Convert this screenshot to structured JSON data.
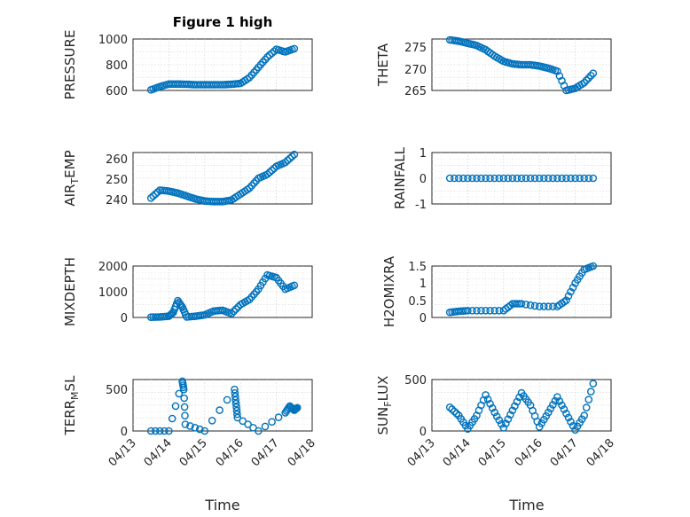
{
  "figure_title": "Figure 1 high",
  "xlabel": "Time",
  "x_ticks": [
    "04/13",
    "04/14",
    "04/15",
    "04/16",
    "04/17",
    "04/18"
  ],
  "marker_color": "#0072BD",
  "chart_data": [
    {
      "id": "pressure",
      "type": "scatter",
      "title": "Figure 1 high",
      "ylabel": "PRESSURE",
      "ylim": [
        600,
        1000
      ],
      "yticks": [
        "600",
        "800",
        "1000"
      ],
      "xlim": [
        "04/13",
        "04/18"
      ],
      "grid": true,
      "x": [
        "04/13 12:00",
        "04/13 18:00",
        "04/14 00:00",
        "04/14 06:00",
        "04/14 12:00",
        "04/14 18:00",
        "04/15 00:00",
        "04/15 06:00",
        "04/15 12:00",
        "04/15 18:00",
        "04/16 00:00",
        "04/16 06:00",
        "04/16 12:00",
        "04/16 18:00",
        "04/17 00:00",
        "04/17 06:00",
        "04/17 12:00"
      ],
      "y": [
        605,
        630,
        650,
        650,
        648,
        645,
        645,
        645,
        645,
        648,
        655,
        700,
        780,
        860,
        920,
        900,
        925
      ]
    },
    {
      "id": "theta",
      "type": "scatter",
      "ylabel": "THETA",
      "ylim": [
        265,
        277
      ],
      "yticks": [
        "265",
        "270",
        "275"
      ],
      "xlim": [
        "04/13",
        "04/18"
      ],
      "grid": true,
      "x": [
        "04/13 12:00",
        "04/13 18:00",
        "04/14 00:00",
        "04/14 06:00",
        "04/14 12:00",
        "04/14 18:00",
        "04/15 00:00",
        "04/15 06:00",
        "04/15 12:00",
        "04/15 18:00",
        "04/16 00:00",
        "04/16 06:00",
        "04/16 12:00",
        "04/16 18:00",
        "04/17 00:00",
        "04/17 06:00",
        "04/17 12:00"
      ],
      "y": [
        276.8,
        276.5,
        276.0,
        275.5,
        274.5,
        273.0,
        271.8,
        271.2,
        271.0,
        271.0,
        270.7,
        270.2,
        269.5,
        265.0,
        265.5,
        266.8,
        269.0
      ]
    },
    {
      "id": "air_temp",
      "type": "scatter",
      "ylabel": "AIR_TEMP",
      "ylim": [
        238,
        264
      ],
      "yticks": [
        "240",
        "250",
        "260"
      ],
      "xlim": [
        "04/13",
        "04/18"
      ],
      "grid": true,
      "x": [
        "04/13 12:00",
        "04/13 18:00",
        "04/14 00:00",
        "04/14 06:00",
        "04/14 12:00",
        "04/14 18:00",
        "04/15 00:00",
        "04/15 06:00",
        "04/15 12:00",
        "04/15 18:00",
        "04/16 00:00",
        "04/16 06:00",
        "04/16 12:00",
        "04/16 18:00",
        "04/17 00:00",
        "04/17 06:00",
        "04/17 12:00"
      ],
      "y": [
        241,
        245,
        244.5,
        243.5,
        242,
        240.5,
        239.5,
        239.2,
        239.2,
        240,
        243,
        246,
        251,
        253,
        257,
        259,
        263
      ]
    },
    {
      "id": "rainfall",
      "type": "scatter",
      "ylabel": "RAINFALL",
      "ylim": [
        -1,
        1
      ],
      "yticks": [
        "-1",
        "0",
        "1"
      ],
      "xlim": [
        "04/13",
        "04/18"
      ],
      "grid": true,
      "x": [
        "04/13 12:00",
        "04/14 00:00",
        "04/14 12:00",
        "04/15 00:00",
        "04/15 12:00",
        "04/16 00:00",
        "04/16 12:00",
        "04/17 00:00",
        "04/17 12:00"
      ],
      "y": [
        0,
        0,
        0,
        0,
        0,
        0,
        0,
        0,
        0
      ]
    },
    {
      "id": "mixdepth",
      "type": "scatter",
      "ylabel": "MIXDEPTH",
      "ylim": [
        0,
        2000
      ],
      "yticks": [
        "0",
        "1000",
        "2000"
      ],
      "xlim": [
        "04/13",
        "04/18"
      ],
      "grid": true,
      "x": [
        "04/13 12:00",
        "04/13 18:00",
        "04/14 00:00",
        "04/14 03:00",
        "04/14 06:00",
        "04/14 09:00",
        "04/14 12:00",
        "04/14 18:00",
        "04/15 00:00",
        "04/15 06:00",
        "04/15 12:00",
        "04/15 18:00",
        "04/16 00:00",
        "04/16 06:00",
        "04/16 12:00",
        "04/16 18:00",
        "04/17 00:00",
        "04/17 06:00",
        "04/17 12:00"
      ],
      "y": [
        10,
        20,
        50,
        200,
        650,
        400,
        20,
        50,
        100,
        250,
        280,
        150,
        500,
        700,
        1100,
        1650,
        1550,
        1100,
        1250
      ]
    },
    {
      "id": "h2omixra",
      "type": "scatter",
      "ylabel": "H2OMIXRA",
      "ylim": [
        0,
        1.5
      ],
      "yticks": [
        "0",
        "0.5",
        "1",
        "1.5"
      ],
      "xlim": [
        "04/13",
        "04/18"
      ],
      "grid": true,
      "x": [
        "04/13 12:00",
        "04/13 18:00",
        "04/14 00:00",
        "04/14 12:00",
        "04/15 00:00",
        "04/15 06:00",
        "04/15 12:00",
        "04/16 00:00",
        "04/16 12:00",
        "04/16 18:00",
        "04/17 00:00",
        "04/17 06:00",
        "04/17 12:00"
      ],
      "y": [
        0.15,
        0.18,
        0.2,
        0.2,
        0.2,
        0.4,
        0.4,
        0.32,
        0.32,
        0.5,
        1.0,
        1.4,
        1.5
      ]
    },
    {
      "id": "terr_msl",
      "type": "scatter",
      "ylabel": "TERR_MSL",
      "ylim": [
        0,
        620
      ],
      "yticks": [
        "0",
        "500"
      ],
      "xlim": [
        "04/13",
        "04/18"
      ],
      "grid": true,
      "x": [
        "04/13 12:00",
        "04/14 00:00",
        "04/14 09:00",
        "04/14 10:00",
        "04/14 11:00",
        "04/15 00:00",
        "04/15 20:00",
        "04/15 21:00",
        "04/15 22:00",
        "04/16 12:00",
        "04/17 06:00",
        "04/17 09:00",
        "04/17 12:00",
        "04/17 14:00"
      ],
      "y": [
        0,
        0,
        600,
        500,
        80,
        0,
        500,
        330,
        160,
        0,
        220,
        300,
        250,
        280
      ]
    },
    {
      "id": "sun_flux",
      "type": "scatter",
      "ylabel": "SUN_FLUX",
      "ylim": [
        0,
        500
      ],
      "yticks": [
        "0",
        "500"
      ],
      "xlim": [
        "04/13",
        "04/18"
      ],
      "grid": true,
      "x": [
        "04/13 12:00",
        "04/13 18:00",
        "04/14 00:00",
        "04/14 06:00",
        "04/14 12:00",
        "04/14 18:00",
        "04/15 00:00",
        "04/15 06:00",
        "04/15 12:00",
        "04/15 18:00",
        "04/16 00:00",
        "04/16 06:00",
        "04/16 12:00",
        "04/16 18:00",
        "04/17 00:00",
        "04/17 06:00",
        "04/17 12:00"
      ],
      "y": [
        230,
        150,
        20,
        150,
        350,
        180,
        30,
        200,
        370,
        250,
        40,
        180,
        330,
        170,
        10,
        150,
        460
      ]
    }
  ]
}
